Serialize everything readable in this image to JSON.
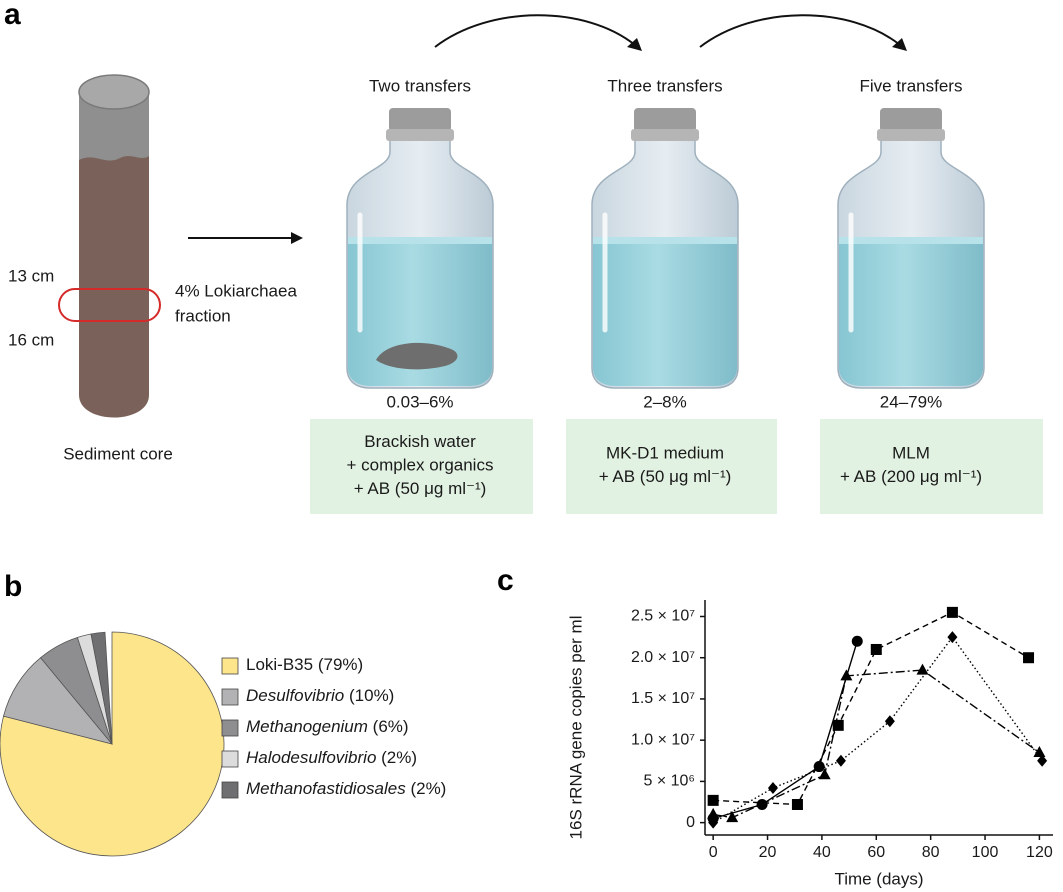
{
  "panel_a": {
    "label": "a",
    "core": {
      "top_depth": "13 cm",
      "bottom_depth": "16 cm",
      "fraction_lines": [
        "4% Lokiarchaea",
        "fraction"
      ],
      "caption": "Sediment core"
    },
    "transfers": [
      {
        "title": "Two transfers",
        "percent": "0.03–6%",
        "box_lines": [
          "Brackish water",
          "+ complex organics",
          "+ AB (50 μg ml⁻¹)"
        ]
      },
      {
        "title": "Three transfers",
        "percent": "2–8%",
        "box_lines": [
          "MK-D1 medium",
          "+ AB (50 μg ml⁻¹)"
        ]
      },
      {
        "title": "Five transfers",
        "percent": "24–79%",
        "box_lines": [
          "MLM",
          "+ AB (200 μg ml⁻¹)"
        ]
      }
    ]
  },
  "chart_data": [
    {
      "type": "pie",
      "label": "b",
      "categories": [
        "Loki-B35",
        "Desulfovibrio",
        "Methanogenium",
        "Halodesulfovibrio",
        "Methanofastidiosales"
      ],
      "values": [
        79,
        10,
        6,
        2,
        2
      ],
      "value_labels": [
        "(79%)",
        "(10%)",
        "(6%)",
        "(2%)",
        "(2%)"
      ],
      "colors": [
        "#fde58c",
        "#b2b2b4",
        "#8e8e90",
        "#dcdcdc",
        "#6f6f71"
      ]
    },
    {
      "type": "line",
      "label": "c",
      "x_label": "Time (days)",
      "y_label": "16S rRNA gene copies per ml",
      "xlim": [
        -3,
        125
      ],
      "xticks": [
        0,
        20,
        40,
        60,
        80,
        100,
        120
      ],
      "ylim": [
        -1500000,
        27000000
      ],
      "yticks": [
        0,
        {
          "value": 5000000,
          "label": "5 × 10⁶"
        },
        {
          "value": 10000000,
          "label": "1.0 × 10⁷"
        },
        {
          "value": 15000000,
          "label": "1.5 × 10⁷"
        },
        {
          "value": 20000000,
          "label": "2.0 × 10⁷"
        },
        {
          "value": 25000000,
          "label": "2.5 × 10⁷"
        }
      ],
      "series": [
        {
          "marker": "circle",
          "line_style": "solid",
          "color": "#000000",
          "x": [
            0,
            18,
            39,
            53
          ],
          "values": [
            500000,
            2200000,
            6800000,
            22000000
          ]
        },
        {
          "marker": "square",
          "line_style": "dashed",
          "color": "#000000",
          "x": [
            0,
            31,
            46,
            60,
            88,
            116
          ],
          "values": [
            2700000,
            2200000,
            11800000,
            21000000,
            25500000,
            20000000
          ]
        },
        {
          "marker": "triangle",
          "line_style": "dashdot",
          "color": "#000000",
          "x": [
            0,
            7,
            41,
            49,
            77,
            120
          ],
          "values": [
            1000000,
            600000,
            5800000,
            17800000,
            18500000,
            8500000
          ]
        },
        {
          "marker": "diamond",
          "line_style": "dotted",
          "color": "#000000",
          "x": [
            0,
            22,
            47,
            65,
            88,
            121
          ],
          "values": [
            0,
            4200000,
            7500000,
            12300000,
            22500000,
            7500000
          ]
        }
      ]
    }
  ]
}
